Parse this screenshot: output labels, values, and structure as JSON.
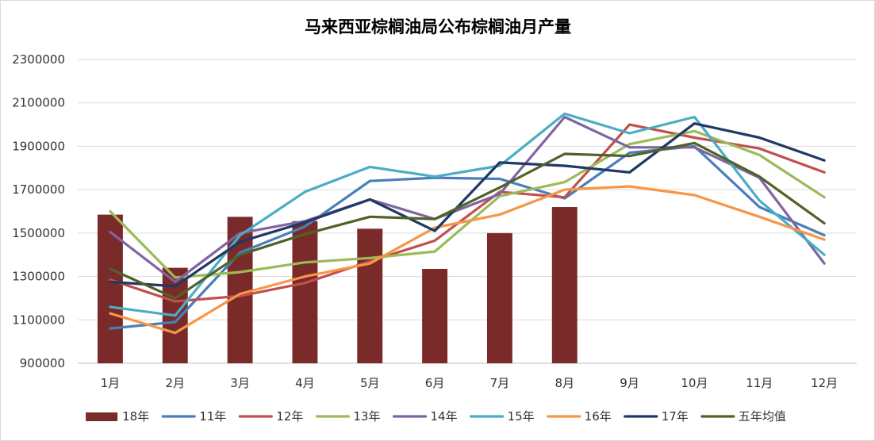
{
  "chart_data": {
    "type": "bar+line",
    "title": "马来西亚棕榈油局公布棕榈油月产量",
    "xlabel": "",
    "ylabel": "",
    "ylim": [
      900000,
      2300000
    ],
    "yticks": [
      "900000",
      "1100000",
      "1300000",
      "1500000",
      "1700000",
      "1900000",
      "2100000",
      "2300000"
    ],
    "grid": true,
    "legend_position": "bottom",
    "categories": [
      "1月",
      "2月",
      "3月",
      "4月",
      "5月",
      "6月",
      "7月",
      "8月",
      "9月",
      "10月",
      "11月",
      "12月"
    ],
    "series": [
      {
        "name": "18年",
        "type": "bar",
        "color": "#7b2a2a",
        "values": [
          1585000,
          1340000,
          1575000,
          1555000,
          1520000,
          1335000,
          1500000,
          1620000,
          null,
          null,
          null,
          null
        ]
      },
      {
        "name": "11年",
        "type": "line",
        "color": "#4a7ebb",
        "values": [
          1060000,
          1090000,
          1410000,
          1530000,
          1740000,
          1755000,
          1750000,
          1660000,
          1870000,
          1900000,
          1620000,
          1490000
        ]
      },
      {
        "name": "12年",
        "type": "line",
        "color": "#c0504d",
        "values": [
          1285000,
          1185000,
          1210000,
          1270000,
          1370000,
          1465000,
          1690000,
          1665000,
          2000000,
          1940000,
          1890000,
          1780000
        ]
      },
      {
        "name": "13年",
        "type": "line",
        "color": "#9bbb59",
        "values": [
          1600000,
          1295000,
          1320000,
          1365000,
          1385000,
          1415000,
          1670000,
          1735000,
          1910000,
          1970000,
          1860000,
          1665000
        ]
      },
      {
        "name": "14年",
        "type": "line",
        "color": "#8064a2",
        "values": [
          1505000,
          1275000,
          1500000,
          1555000,
          1655000,
          1565000,
          1680000,
          2035000,
          1895000,
          1895000,
          1755000,
          1360000
        ]
      },
      {
        "name": "15年",
        "type": "line",
        "color": "#4bacc6",
        "values": [
          1160000,
          1120000,
          1490000,
          1690000,
          1805000,
          1760000,
          1810000,
          2050000,
          1960000,
          2035000,
          1650000,
          1400000
        ]
      },
      {
        "name": "16年",
        "type": "line",
        "color": "#f79646",
        "values": [
          1130000,
          1040000,
          1220000,
          1300000,
          1360000,
          1525000,
          1585000,
          1700000,
          1715000,
          1675000,
          1575000,
          1470000
        ]
      },
      {
        "name": "17年",
        "type": "line",
        "color": "#1f3864",
        "values": [
          1275000,
          1255000,
          1460000,
          1550000,
          1655000,
          1510000,
          1825000,
          1810000,
          1780000,
          2005000,
          1940000,
          1835000
        ]
      },
      {
        "name": "五年均值",
        "type": "line",
        "color": "#4f6228",
        "values": [
          1335000,
          1200000,
          1400000,
          1495000,
          1575000,
          1565000,
          1710000,
          1865000,
          1855000,
          1915000,
          1760000,
          1545000
        ]
      }
    ]
  }
}
